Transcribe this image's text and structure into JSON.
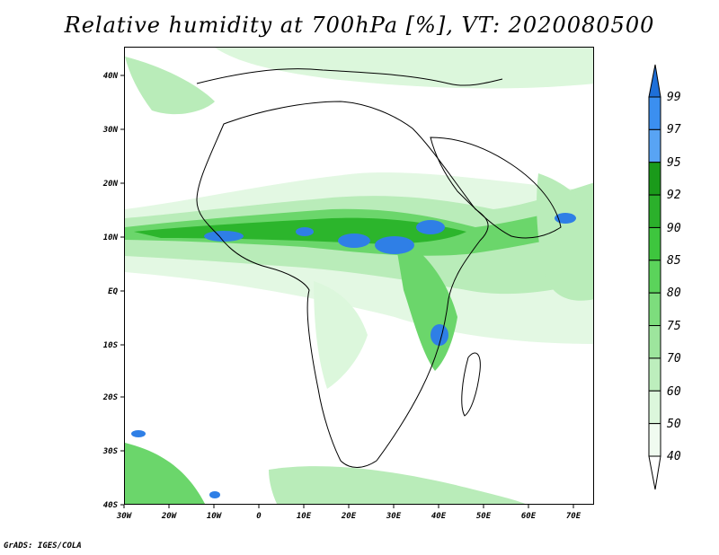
{
  "title": "Relative humidity at 700hPa [%], VT: 2020080500",
  "credit": "GrADS: IGES/COLA",
  "map": {
    "lon_labels": [
      "30W",
      "20W",
      "10W",
      "0",
      "10E",
      "20E",
      "30E",
      "40E",
      "50E",
      "60E",
      "70E"
    ],
    "lat_labels": [
      "40N",
      "30N",
      "20N",
      "10N",
      "EQ",
      "10S",
      "20S",
      "30S",
      "40S"
    ]
  },
  "colorbar": {
    "levels": [
      "99",
      "97",
      "95",
      "92",
      "90",
      "85",
      "80",
      "75",
      "70",
      "60",
      "50",
      "40"
    ],
    "colors": [
      "#1e6fd8",
      "#3b8ff0",
      "#58a4f4",
      "#1a9a1a",
      "#2bb02b",
      "#3ec63e",
      "#5bd35b",
      "#7ddd7d",
      "#9de59d",
      "#bdeebd",
      "#dcf7dc",
      "#f0fbf0"
    ]
  },
  "colors": {
    "land_border": "#000000",
    "humid_blue": "#2f7fe6",
    "green_dark": "#2cb52c",
    "green_mid": "#6bd66b",
    "green_light": "#b9ecb9",
    "green_pale": "#e3f8e3"
  }
}
